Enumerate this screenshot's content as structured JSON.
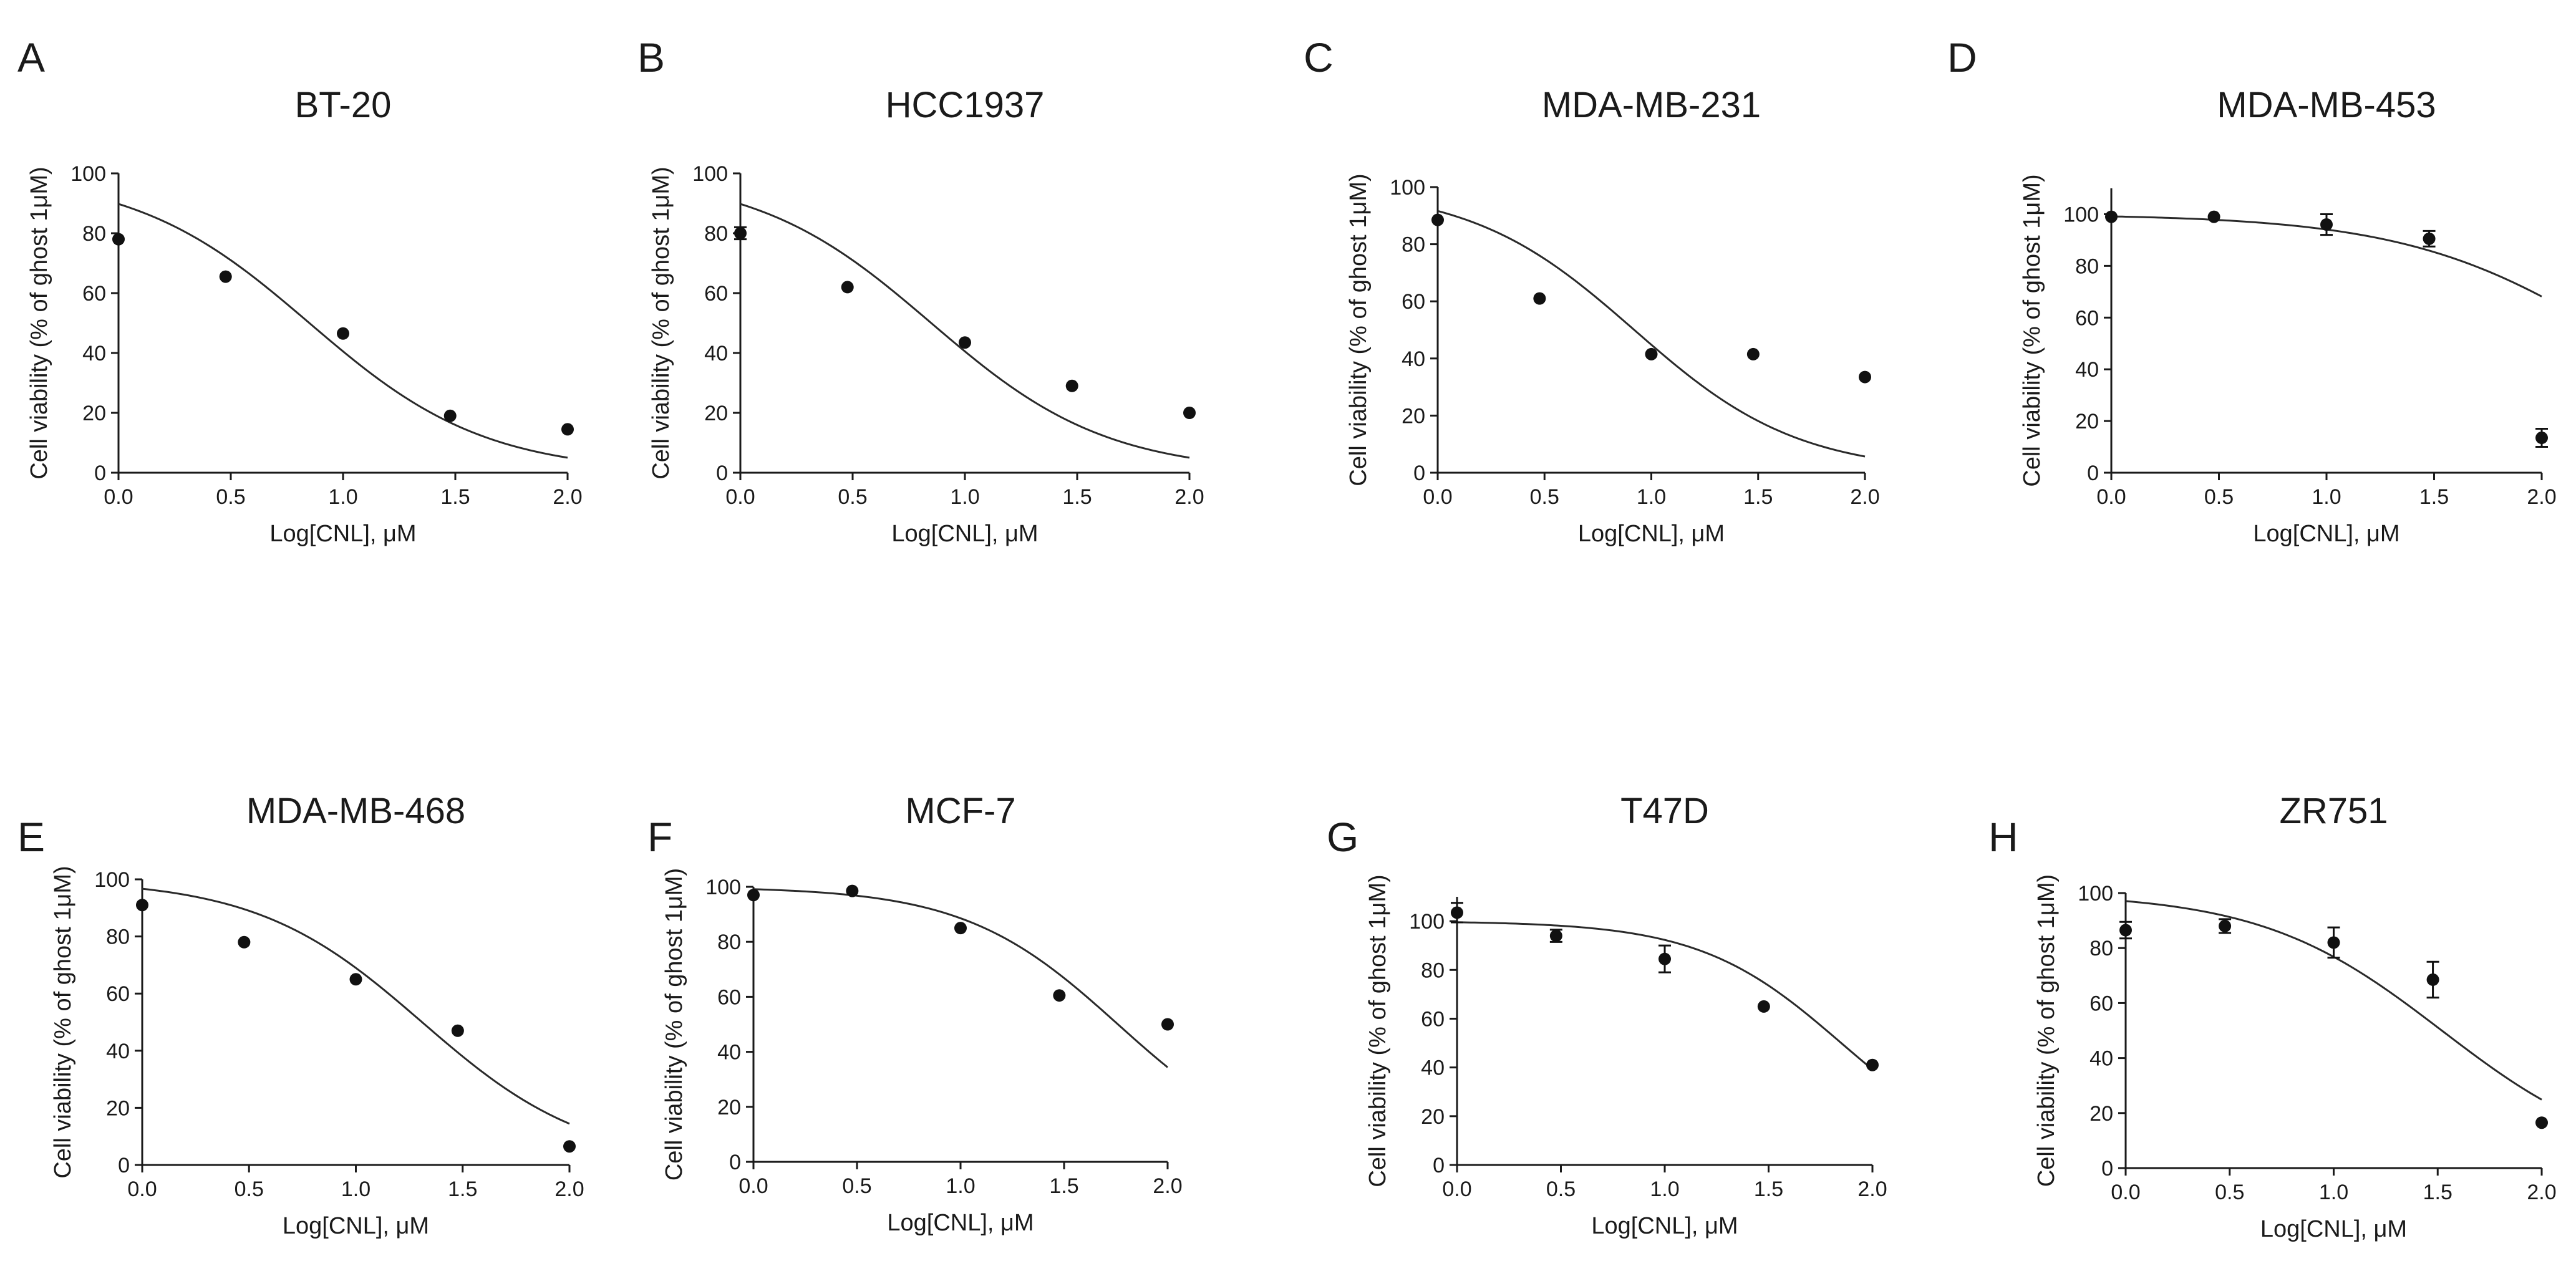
{
  "chart_data": [
    {
      "type": "scatter",
      "panel": "A",
      "title": "BT-20",
      "xlabel": "Log[CNL], μM",
      "ylabel": "Cell viability (% of ghost 1μM)",
      "xlim": [
        0,
        2
      ],
      "ylim": [
        0,
        100
      ],
      "xticks": [
        "0.0",
        "0.5",
        "1.0",
        "1.5",
        "2.0"
      ],
      "yticks": [
        "0",
        "20",
        "40",
        "60",
        "80",
        "100"
      ],
      "points": [
        {
          "x": 0.0,
          "y": 78,
          "err": 0
        },
        {
          "x": 0.477,
          "y": 65.5,
          "err": 0
        },
        {
          "x": 1.0,
          "y": 46.5,
          "err": 0
        },
        {
          "x": 1.477,
          "y": 19,
          "err": 0
        },
        {
          "x": 2.0,
          "y": 14.5,
          "err": 0
        }
      ],
      "fit": {
        "top": 100,
        "bottom": 0,
        "log_ic50": 0.85,
        "hill": 1.11
      }
    },
    {
      "type": "scatter",
      "panel": "B",
      "title": "HCC1937",
      "xlabel": "Log[CNL], μM",
      "ylabel": "Cell viability (% of ghost 1μM)",
      "xlim": [
        0,
        2
      ],
      "ylim": [
        0,
        100
      ],
      "xticks": [
        "0.0",
        "0.5",
        "1.0",
        "1.5",
        "2.0"
      ],
      "yticks": [
        "0",
        "20",
        "40",
        "60",
        "80",
        "100"
      ],
      "points": [
        {
          "x": 0.0,
          "y": 80,
          "err": 2
        },
        {
          "x": 0.477,
          "y": 62,
          "err": 0
        },
        {
          "x": 1.0,
          "y": 43.5,
          "err": 0
        },
        {
          "x": 1.477,
          "y": 29,
          "err": 0
        },
        {
          "x": 2.0,
          "y": 20,
          "err": 0
        }
      ],
      "fit": {
        "top": 100,
        "bottom": 0,
        "log_ic50": 0.85,
        "hill": 1.11
      }
    },
    {
      "type": "scatter",
      "panel": "C",
      "title": "MDA-MB-231",
      "xlabel": "Log[CNL], μM",
      "ylabel": "Cell viability (% of ghost 1μM)",
      "xlim": [
        0,
        2
      ],
      "ylim": [
        0,
        100
      ],
      "xticks": [
        "0.0",
        "0.5",
        "1.0",
        "1.5",
        "2.0"
      ],
      "yticks": [
        "0",
        "20",
        "40",
        "60",
        "80",
        "100"
      ],
      "points": [
        {
          "x": 0.0,
          "y": 88.5,
          "err": 0
        },
        {
          "x": 0.477,
          "y": 61,
          "err": 0
        },
        {
          "x": 1.0,
          "y": 41.5,
          "err": 0
        },
        {
          "x": 1.477,
          "y": 41.5,
          "err": 0
        },
        {
          "x": 2.0,
          "y": 33.5,
          "err": 0
        }
      ],
      "fit": {
        "top": 100,
        "bottom": 0,
        "log_ic50": 0.92,
        "hill": 1.13
      }
    },
    {
      "type": "scatter",
      "panel": "D",
      "title": "MDA-MB-453",
      "xlabel": "Log[CNL], μM",
      "ylabel": "Cell viability (% of ghost 1μM)",
      "xlim": [
        0,
        2
      ],
      "ylim": [
        0,
        110
      ],
      "xticks": [
        "0.0",
        "0.5",
        "1.0",
        "1.5",
        "2.0"
      ],
      "yticks": [
        "0",
        "20",
        "40",
        "60",
        "80",
        "100"
      ],
      "points": [
        {
          "x": 0.0,
          "y": 99,
          "err": 0
        },
        {
          "x": 0.477,
          "y": 99,
          "err": 0
        },
        {
          "x": 1.0,
          "y": 96,
          "err": 4
        },
        {
          "x": 1.477,
          "y": 90.5,
          "err": 3
        },
        {
          "x": 2.0,
          "y": 13.5,
          "err": 3.5
        }
      ],
      "fit": {
        "top": 100,
        "bottom": 0,
        "log_ic50": 2.38,
        "hill": 0.87
      }
    },
    {
      "type": "scatter",
      "panel": "E",
      "title": "MDA-MB-468",
      "xlabel": "Log[CNL], μM",
      "ylabel": "Cell viability (% of ghost 1μM)",
      "xlim": [
        0,
        2
      ],
      "ylim": [
        0,
        100
      ],
      "xticks": [
        "0.0",
        "0.5",
        "1.0",
        "1.5",
        "2.0"
      ],
      "yticks": [
        "0",
        "20",
        "40",
        "60",
        "80",
        "100"
      ],
      "points": [
        {
          "x": 0.0,
          "y": 91,
          "err": 0
        },
        {
          "x": 0.477,
          "y": 78,
          "err": 0
        },
        {
          "x": 1.0,
          "y": 65,
          "err": 0
        },
        {
          "x": 1.477,
          "y": 47,
          "err": 0
        },
        {
          "x": 2.0,
          "y": 6.5,
          "err": 0
        }
      ],
      "fit": {
        "top": 100,
        "bottom": 0,
        "log_ic50": 1.31,
        "hill": 1.12
      }
    },
    {
      "type": "scatter",
      "panel": "F",
      "title": "MCF-7",
      "xlabel": "Log[CNL], μM",
      "ylabel": "Cell viability (% of ghost 1μM)",
      "xlim": [
        0,
        2
      ],
      "ylim": [
        0,
        100
      ],
      "xticks": [
        "0.0",
        "0.5",
        "1.0",
        "1.5",
        "2.0"
      ],
      "yticks": [
        "0",
        "20",
        "40",
        "60",
        "80",
        "100"
      ],
      "points": [
        {
          "x": 0.0,
          "y": 97,
          "err": 0
        },
        {
          "x": 0.477,
          "y": 98.5,
          "err": 0
        },
        {
          "x": 1.0,
          "y": 85,
          "err": 0
        },
        {
          "x": 1.477,
          "y": 60.5,
          "err": 0
        },
        {
          "x": 2.0,
          "y": 50,
          "err": 0
        }
      ],
      "fit": {
        "top": 100,
        "bottom": 0,
        "log_ic50": 1.76,
        "hill": 1.17
      }
    },
    {
      "type": "scatter",
      "panel": "G",
      "title": "T47D",
      "xlabel": "Log[CNL], μM",
      "ylabel": "Cell viability (% of ghost 1μM)",
      "xlim": [
        0,
        2
      ],
      "ylim": [
        0,
        110
      ],
      "xticks": [
        "0.0",
        "0.5",
        "1.0",
        "1.5",
        "2.0"
      ],
      "yticks": [
        "0",
        "20",
        "40",
        "60",
        "80",
        "100"
      ],
      "points": [
        {
          "x": 0.0,
          "y": 103.5,
          "err": 4
        },
        {
          "x": 0.477,
          "y": 94,
          "err": 2.5
        },
        {
          "x": 1.0,
          "y": 84.5,
          "err": 5.5
        },
        {
          "x": 1.477,
          "y": 65,
          "err": 0
        },
        {
          "x": 2.0,
          "y": 41,
          "err": 0
        }
      ],
      "fit": {
        "top": 100,
        "bottom": 0,
        "log_ic50": 1.85,
        "hill": 1.27
      }
    },
    {
      "type": "scatter",
      "panel": "H",
      "title": "ZR751",
      "xlabel": "Log[CNL], μM",
      "ylabel": "Cell viability (% of ghost 1μM)",
      "xlim": [
        0,
        2
      ],
      "ylim": [
        0,
        100
      ],
      "xticks": [
        "0.0",
        "0.5",
        "1.0",
        "1.5",
        "2.0"
      ],
      "yticks": [
        "0",
        "20",
        "40",
        "60",
        "80",
        "100"
      ],
      "points": [
        {
          "x": 0.0,
          "y": 86.5,
          "err": 3
        },
        {
          "x": 0.477,
          "y": 88,
          "err": 2.5
        },
        {
          "x": 1.0,
          "y": 82,
          "err": 5.5
        },
        {
          "x": 1.477,
          "y": 68.5,
          "err": 6.5
        },
        {
          "x": 2.0,
          "y": 16.5,
          "err": 0
        }
      ],
      "fit": {
        "top": 100,
        "bottom": 0,
        "log_ic50": 1.52,
        "hill": 1.0
      }
    }
  ]
}
